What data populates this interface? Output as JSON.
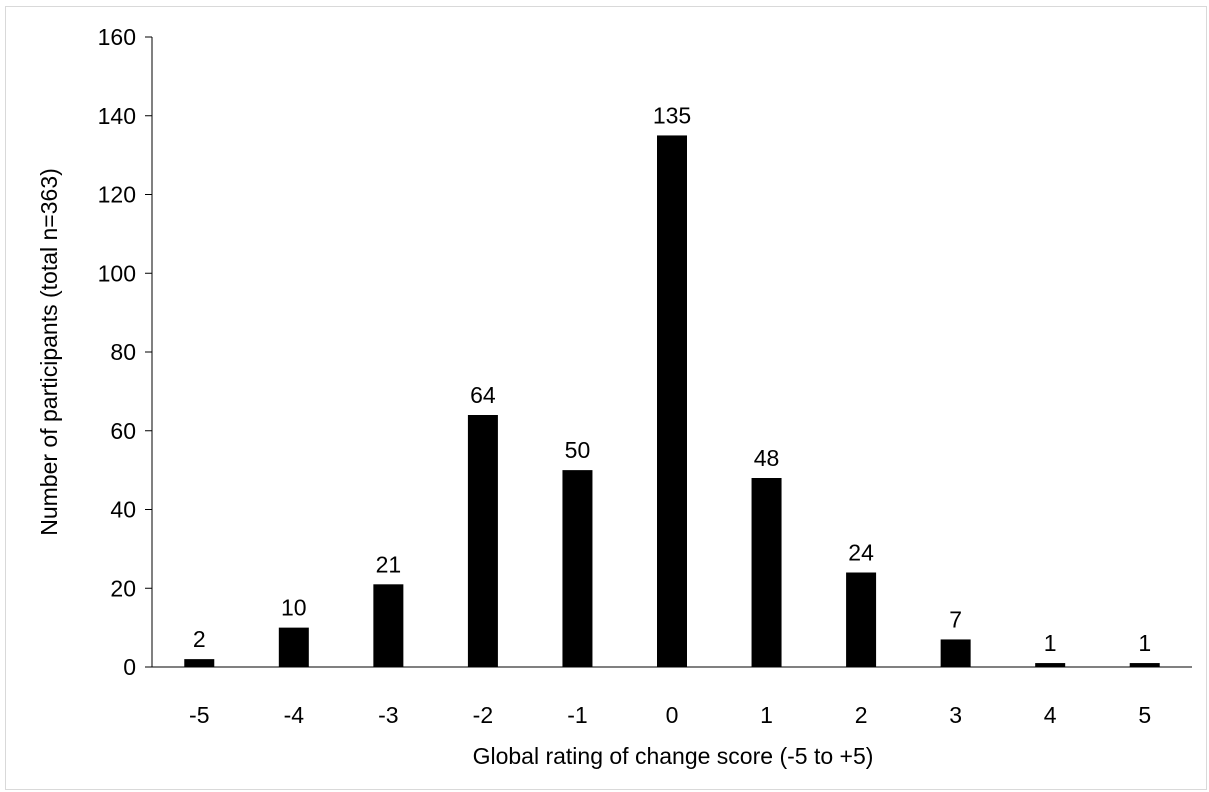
{
  "chart_data": {
    "type": "bar",
    "title": "",
    "xlabel": "Global rating of change score (-5 to +5)",
    "ylabel": "Number of participants (total n=363)",
    "categories": [
      "-5",
      "-4",
      "-3",
      "-2",
      "-1",
      "0",
      "1",
      "2",
      "3",
      "4",
      "5"
    ],
    "values": [
      2,
      10,
      21,
      64,
      50,
      135,
      48,
      24,
      7,
      1,
      1
    ],
    "data_labels": [
      "2",
      "10",
      "21",
      "64",
      "50",
      "135",
      "48",
      "24",
      "7",
      "1",
      "1"
    ],
    "ylim": [
      0,
      160
    ],
    "yticks": [
      "0",
      "20",
      "40",
      "60",
      "80",
      "100",
      "120",
      "140",
      "160"
    ],
    "grid": false,
    "legend": "none",
    "bar_color": "#000000"
  }
}
